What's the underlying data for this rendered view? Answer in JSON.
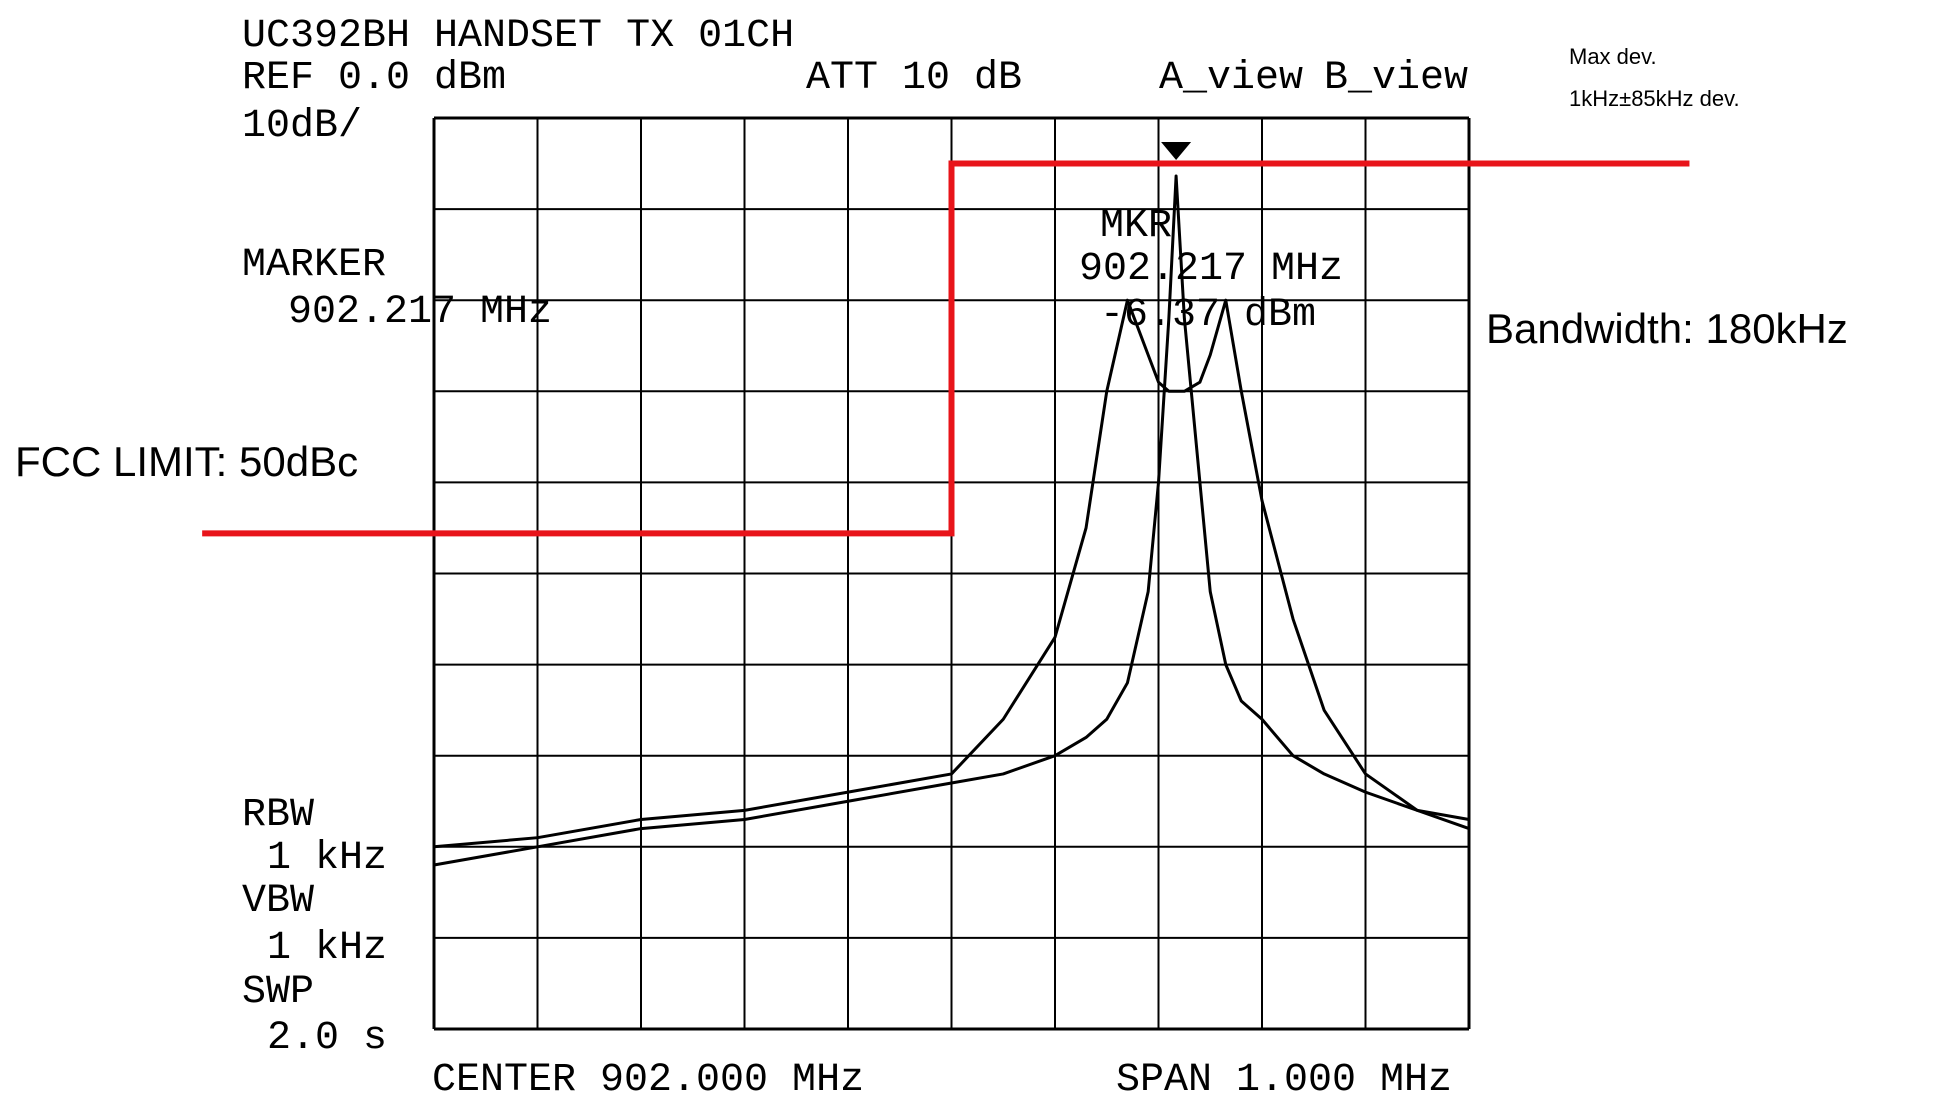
{
  "screen": {
    "title": "UC392BH HANDSET TX 01CH",
    "ref": "REF 0.0 dBm",
    "scale": "10dB/",
    "att": "ATT 10 dB",
    "marker_label": "MARKER",
    "marker_freq": "902.217 MHz",
    "mkr": "MKR",
    "mkr_freq": "902.217  MHz",
    "mkr_level": "-6.37  dBm",
    "rbw_label": "RBW",
    "rbw": "1 kHz",
    "vbw_label": "VBW",
    "vbw": "1 kHz",
    "swp_label": "SWP",
    "swp": "2.0 s",
    "center": "CENTER 902.000 MHz",
    "span": "SPAN 1.000 MHz",
    "max_dev": "Max dev.",
    "max_dev_value": "1kHz±85kHz dev.",
    "bandwidth": "Bandwidth: 180kHz"
  },
  "chart_data": {
    "type": "line",
    "xlim": [
      901.5,
      902.5
    ],
    "ylim": [
      -100,
      0
    ],
    "grid": true,
    "x": [
      901.5,
      901.6,
      901.7,
      901.8,
      901.9,
      902.0,
      902.05,
      902.1,
      902.13,
      902.15,
      902.17,
      902.19,
      902.2,
      902.21,
      902.217,
      902.225,
      902.24,
      902.25,
      902.265,
      902.28,
      902.3,
      902.33,
      902.36,
      902.4,
      902.45,
      902.5
    ],
    "series": [
      {
        "name": "A_view",
        "color": "#000000",
        "values": [
          -80,
          -79,
          -77,
          -76,
          -74,
          -72,
          -66,
          -57,
          -45,
          -30,
          -20,
          -26,
          -29,
          -30,
          -30,
          -30,
          -29,
          -26,
          -20,
          -30,
          -42,
          -55,
          -65,
          -72,
          -76,
          -78
        ]
      },
      {
        "name": "B_view",
        "color": "#000000",
        "values": [
          -82,
          -80,
          -78,
          -77,
          -75,
          -73,
          -72,
          -70,
          -68,
          -66,
          -62,
          -52,
          -40,
          -22,
          -6.37,
          -22,
          -40,
          -52,
          -60,
          -64,
          -66,
          -70,
          -72,
          -74,
          -76,
          -77
        ]
      }
    ],
    "limit": {
      "label": "FCC LIMIT: 50dBc",
      "color": "#e8141a",
      "x": [
        901.276,
        902.0,
        902.0,
        902.713
      ],
      "values": [
        -45.6,
        -45.6,
        -5,
        -5
      ]
    }
  }
}
